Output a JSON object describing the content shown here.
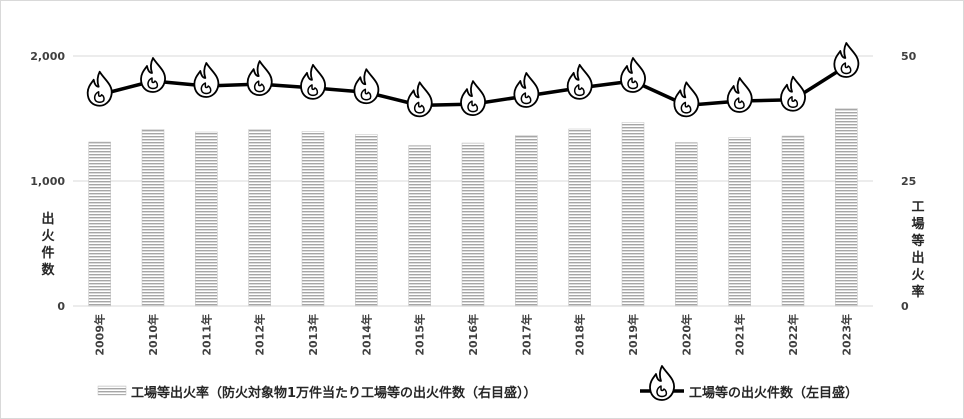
{
  "chart_data": {
    "type": "bar+line",
    "title": "",
    "categories": [
      "2009年",
      "2010年",
      "2011年",
      "2012年",
      "2013年",
      "2014年",
      "2015年",
      "2016年",
      "2017年",
      "2018年",
      "2019年",
      "2020年",
      "2021年",
      "2022年",
      "2023年"
    ],
    "series": [
      {
        "name": "工場等出火率（防火対象物1万件当たり工場等の出火件数（右目盛））",
        "kind": "bar",
        "axis": "right",
        "values": [
          32.8,
          35.3,
          34.8,
          35.3,
          34.9,
          34.3,
          32.1,
          32.6,
          34.1,
          35.4,
          36.7,
          32.7,
          33.7,
          34.0,
          39.5
        ]
      },
      {
        "name": "工場等の出火件数（左目盛）",
        "kind": "line",
        "axis": "left",
        "values": [
          1690,
          1800,
          1760,
          1775,
          1745,
          1710,
          1605,
          1615,
          1680,
          1745,
          1800,
          1605,
          1640,
          1650,
          1920
        ]
      }
    ],
    "ylabel_left": "出火件数",
    "ylabel_right": "工場等出火率",
    "ylim_left": [
      0,
      2000
    ],
    "ylim_right": [
      0,
      50
    ],
    "yticks_left": [
      "0",
      "1,000",
      "2,000"
    ],
    "yticks_right": [
      "0",
      "25",
      "50"
    ],
    "grid": true,
    "legend_position": "bottom"
  },
  "colors": {
    "bar_stripe": "#a6a6a6",
    "line": "#000000",
    "grid": "#d9d9d9",
    "axis_text": "#404040"
  },
  "icons": {
    "line_marker": "flame-icon"
  }
}
